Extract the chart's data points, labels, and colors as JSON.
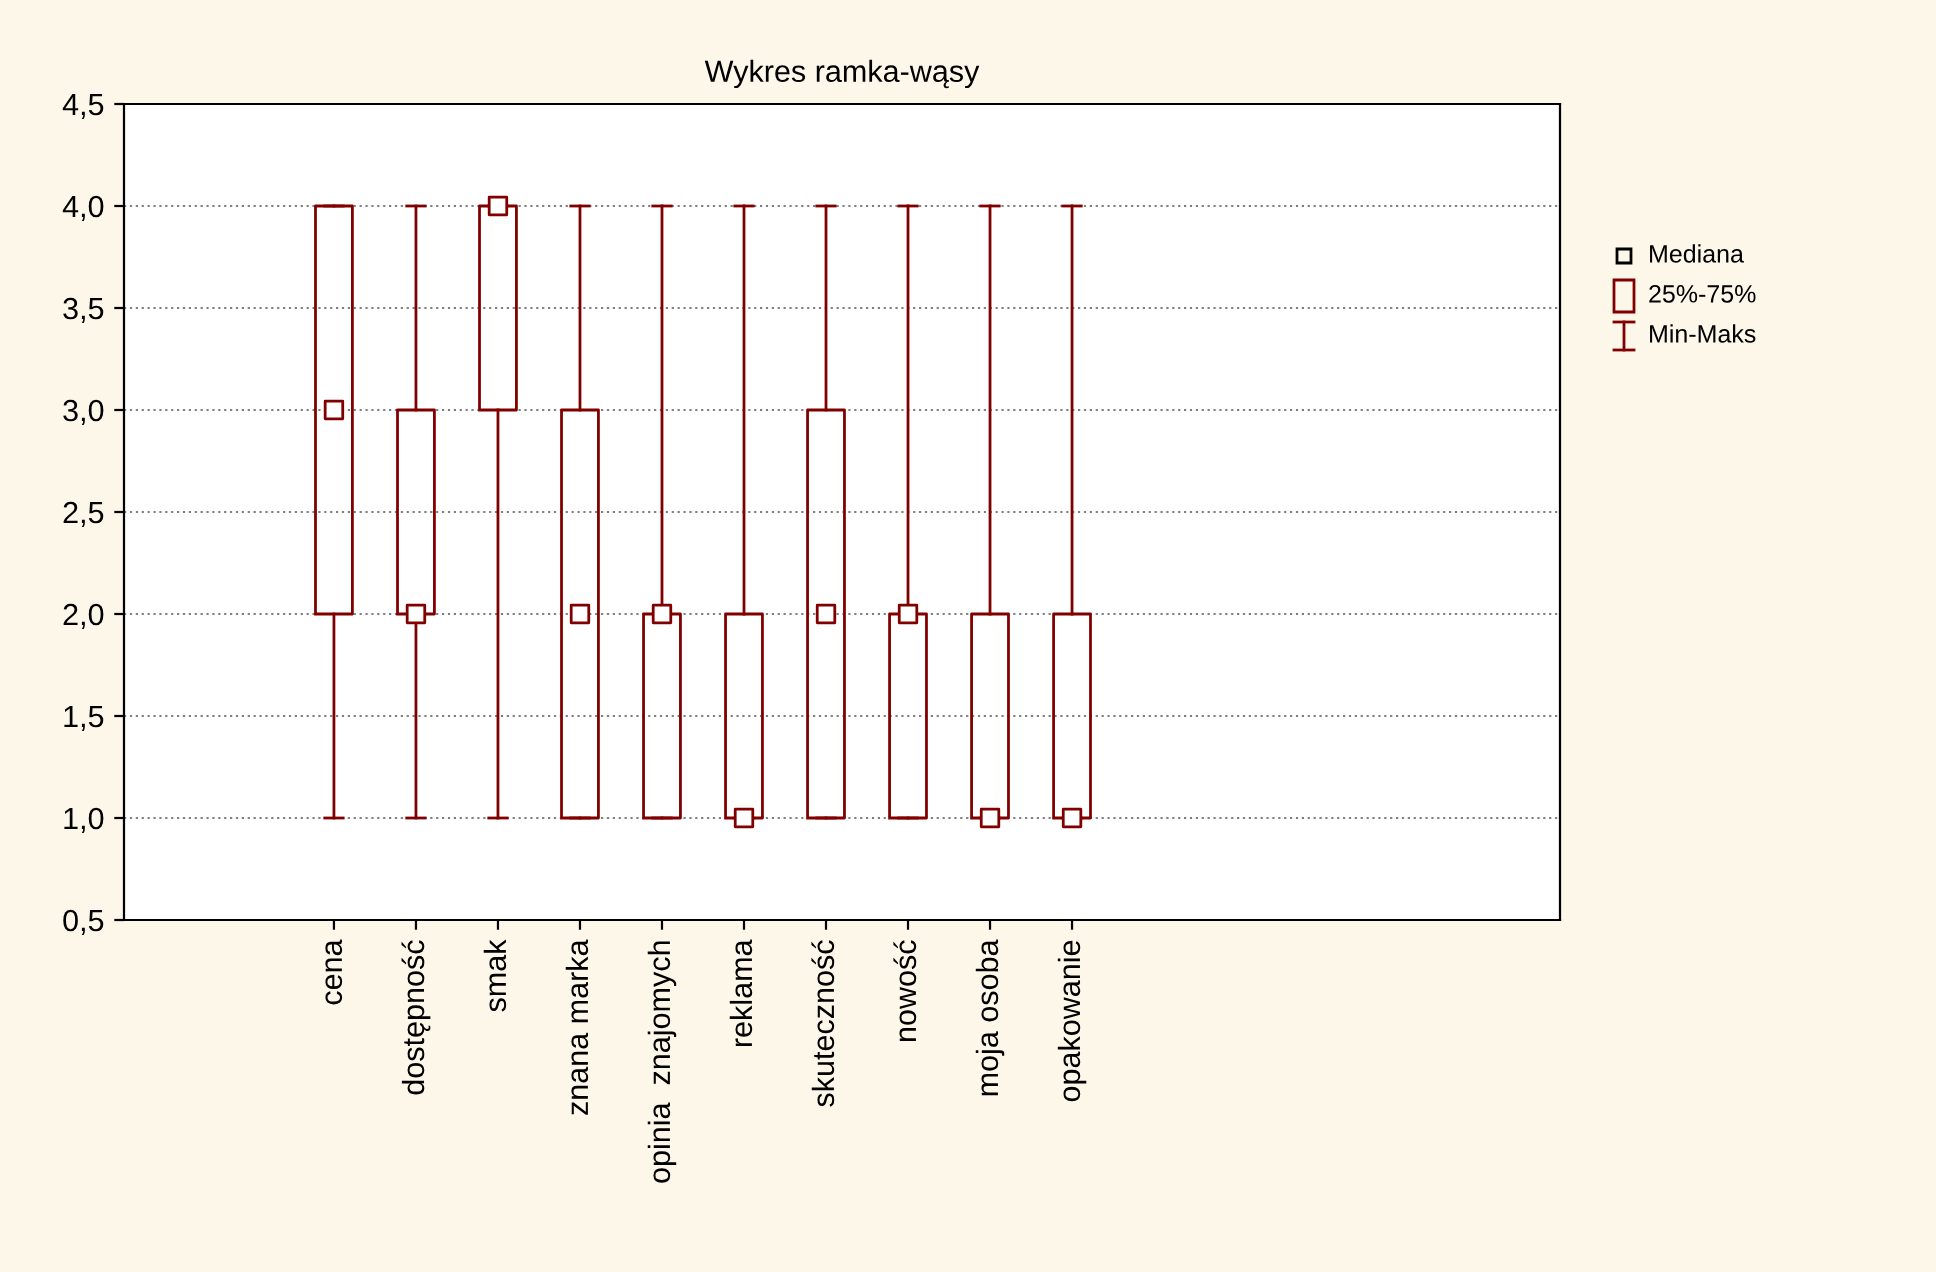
{
  "chart_data": {
    "type": "box",
    "title": "Wykres ramka-wąsy",
    "categories": [
      "cena",
      "dostępność",
      "smak",
      "znana marka",
      "opinia  znajomych",
      "reklama",
      "skuteczność",
      "nowość",
      "moja osoba",
      "opakowanie"
    ],
    "boxes": [
      {
        "low": 1,
        "q1": 2,
        "median": 3,
        "q3": 4,
        "high": 4
      },
      {
        "low": 1,
        "q1": 2,
        "median": 2,
        "q3": 3,
        "high": 4
      },
      {
        "low": 1,
        "q1": 3,
        "median": 4,
        "q3": 4,
        "high": 4
      },
      {
        "low": 1,
        "q1": 1,
        "median": 2,
        "q3": 3,
        "high": 4
      },
      {
        "low": 1,
        "q1": 1,
        "median": 2,
        "q3": 2,
        "high": 4
      },
      {
        "low": 1,
        "q1": 1,
        "median": 1,
        "q3": 2,
        "high": 4
      },
      {
        "low": 1,
        "q1": 1,
        "median": 2,
        "q3": 3,
        "high": 4
      },
      {
        "low": 1,
        "q1": 1,
        "median": 2,
        "q3": 2,
        "high": 4
      },
      {
        "low": 1,
        "q1": 1,
        "median": 1,
        "q3": 2,
        "high": 4
      },
      {
        "low": 1,
        "q1": 1,
        "median": 1,
        "q3": 2,
        "high": 4
      }
    ],
    "series": [
      {
        "type": "scatter",
        "x": [
          "cena",
          "dostępność",
          "smak",
          "znana marka",
          "opinia  znajomych",
          "reklama",
          "skuteczność",
          "nowość",
          "moja osoba",
          "opakowanie"
        ],
        "values": [
          3,
          2,
          4,
          2,
          2,
          1,
          2,
          2,
          1,
          1
        ],
        "color": "#800000",
        "marker": "square"
      }
    ],
    "color": "#800000",
    "ylim": [
      0.5,
      4.5
    ],
    "yticks": [
      {
        "value": 0.5,
        "label": "0,5"
      },
      {
        "value": 1.0,
        "label": "1,0"
      },
      {
        "value": 1.5,
        "label": "1,5"
      },
      {
        "value": 2.0,
        "label": "2,0"
      },
      {
        "value": 2.5,
        "label": "2,5"
      },
      {
        "value": 3.0,
        "label": "3,0"
      },
      {
        "value": 3.5,
        "label": "3,5"
      },
      {
        "value": 4.0,
        "label": "4,0"
      },
      {
        "value": 4.5,
        "label": "4,5"
      }
    ],
    "grid": "y",
    "annotations": [
      "Mediana",
      "25%-75%",
      "Min-Maks"
    ]
  }
}
